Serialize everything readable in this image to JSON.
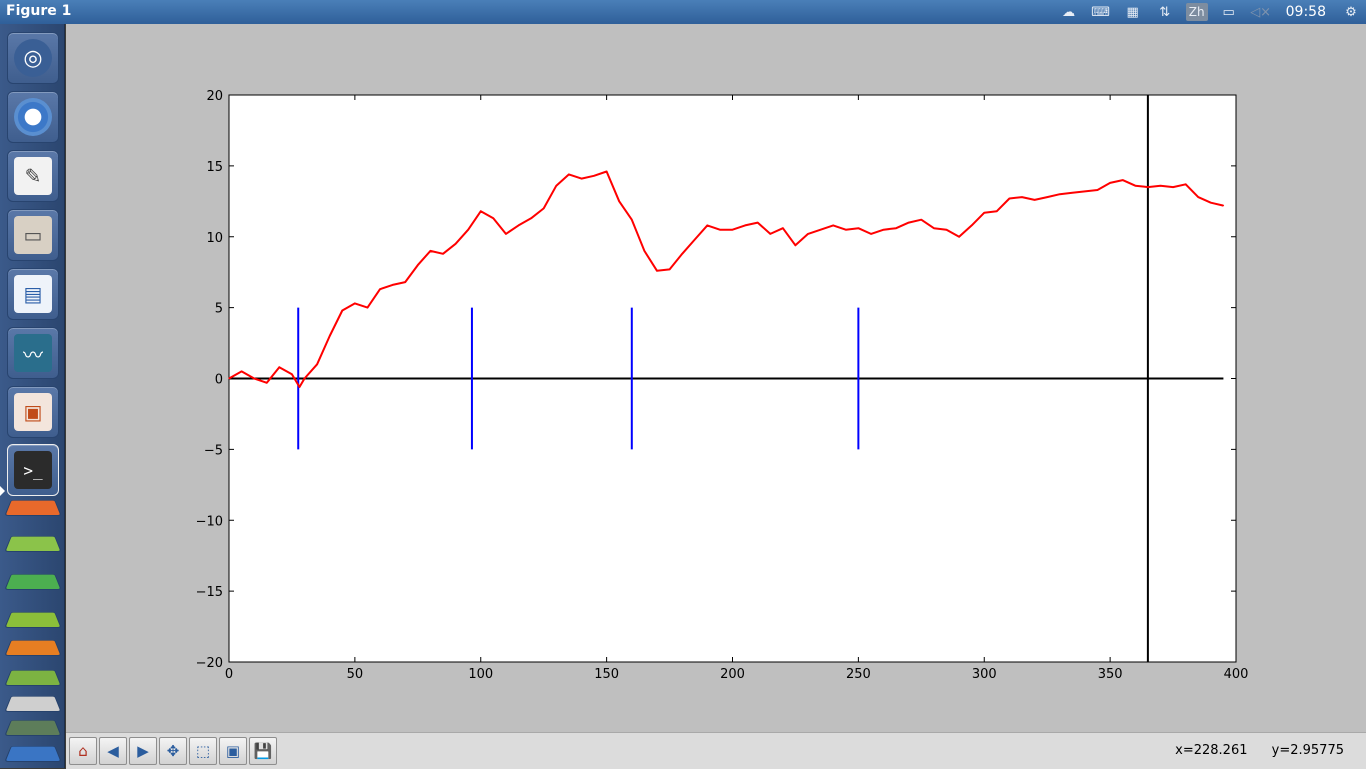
{
  "window": {
    "title": "Figure 1"
  },
  "tray": {
    "clock": "09:58",
    "input_method": "Zh"
  },
  "toolbar": {
    "coords_x": "x=228.261",
    "coords_y": "y=2.95775"
  },
  "colors": {
    "series": "#ff0000",
    "vlines": "#0000ff",
    "axis_lines": "#000000",
    "figure_bg": "#bfbfbf"
  },
  "chart_data": {
    "type": "line",
    "title": "",
    "xlabel": "",
    "ylabel": "",
    "xlim": [
      0,
      400
    ],
    "ylim": [
      -20,
      20
    ],
    "xticks": [
      0,
      50,
      100,
      150,
      200,
      250,
      300,
      350,
      400
    ],
    "yticks": [
      -20,
      -15,
      -10,
      -5,
      0,
      5,
      10,
      15,
      20
    ],
    "grid": false,
    "series": [
      {
        "x": [
          0,
          5,
          10,
          15,
          20,
          25,
          28,
          30,
          35,
          40,
          45,
          50,
          55,
          60,
          65,
          70,
          75,
          80,
          85,
          90,
          95,
          100,
          105,
          110,
          115,
          120,
          125,
          130,
          135,
          140,
          145,
          150,
          155,
          160,
          165,
          170,
          175,
          180,
          185,
          190,
          195,
          200,
          205,
          210,
          215,
          220,
          225,
          230,
          235,
          240,
          245,
          250,
          255,
          260,
          265,
          270,
          275,
          280,
          285,
          290,
          295,
          300,
          305,
          310,
          315,
          320,
          325,
          330,
          335,
          340,
          345,
          350,
          355,
          360,
          365,
          370,
          375,
          380,
          385,
          390,
          395
        ],
        "y": [
          0,
          0.5,
          0,
          -0.3,
          0.8,
          0.3,
          -0.6,
          0,
          1,
          3,
          4.8,
          5.3,
          5,
          6.3,
          6.6,
          6.8,
          8,
          9,
          8.8,
          9.5,
          10.5,
          11.8,
          11.3,
          10.2,
          10.8,
          11.3,
          12,
          13.6,
          14.4,
          14.1,
          14.3,
          14.6,
          12.5,
          11.2,
          9,
          7.6,
          7.7,
          8.8,
          9.8,
          10.8,
          10.5,
          10.5,
          10.8,
          11,
          10.2,
          10.6,
          9.4,
          10.2,
          10.5,
          10.8,
          10.5,
          10.6,
          10.2,
          10.5,
          10.6,
          11,
          11.2,
          10.6,
          10.5,
          10,
          10.8,
          11.7,
          11.8,
          12.7,
          12.8,
          12.6,
          12.8,
          13,
          13.1,
          13.2,
          13.3,
          13.8,
          14,
          13.6,
          13.5,
          13.6,
          13.5,
          13.7,
          12.8,
          12.4,
          12.2
        ]
      }
    ],
    "hlines": [
      {
        "y": 0,
        "xmin": 0,
        "xmax": 395
      }
    ],
    "vlines_full": [
      365
    ],
    "vlines_short": [
      {
        "x": 27.5,
        "ymin": -5,
        "ymax": 5
      },
      {
        "x": 96.5,
        "ymin": -5,
        "ymax": 5
      },
      {
        "x": 160,
        "ymin": -5,
        "ymax": 5
      },
      {
        "x": 250,
        "ymin": -5,
        "ymax": 5
      }
    ]
  }
}
